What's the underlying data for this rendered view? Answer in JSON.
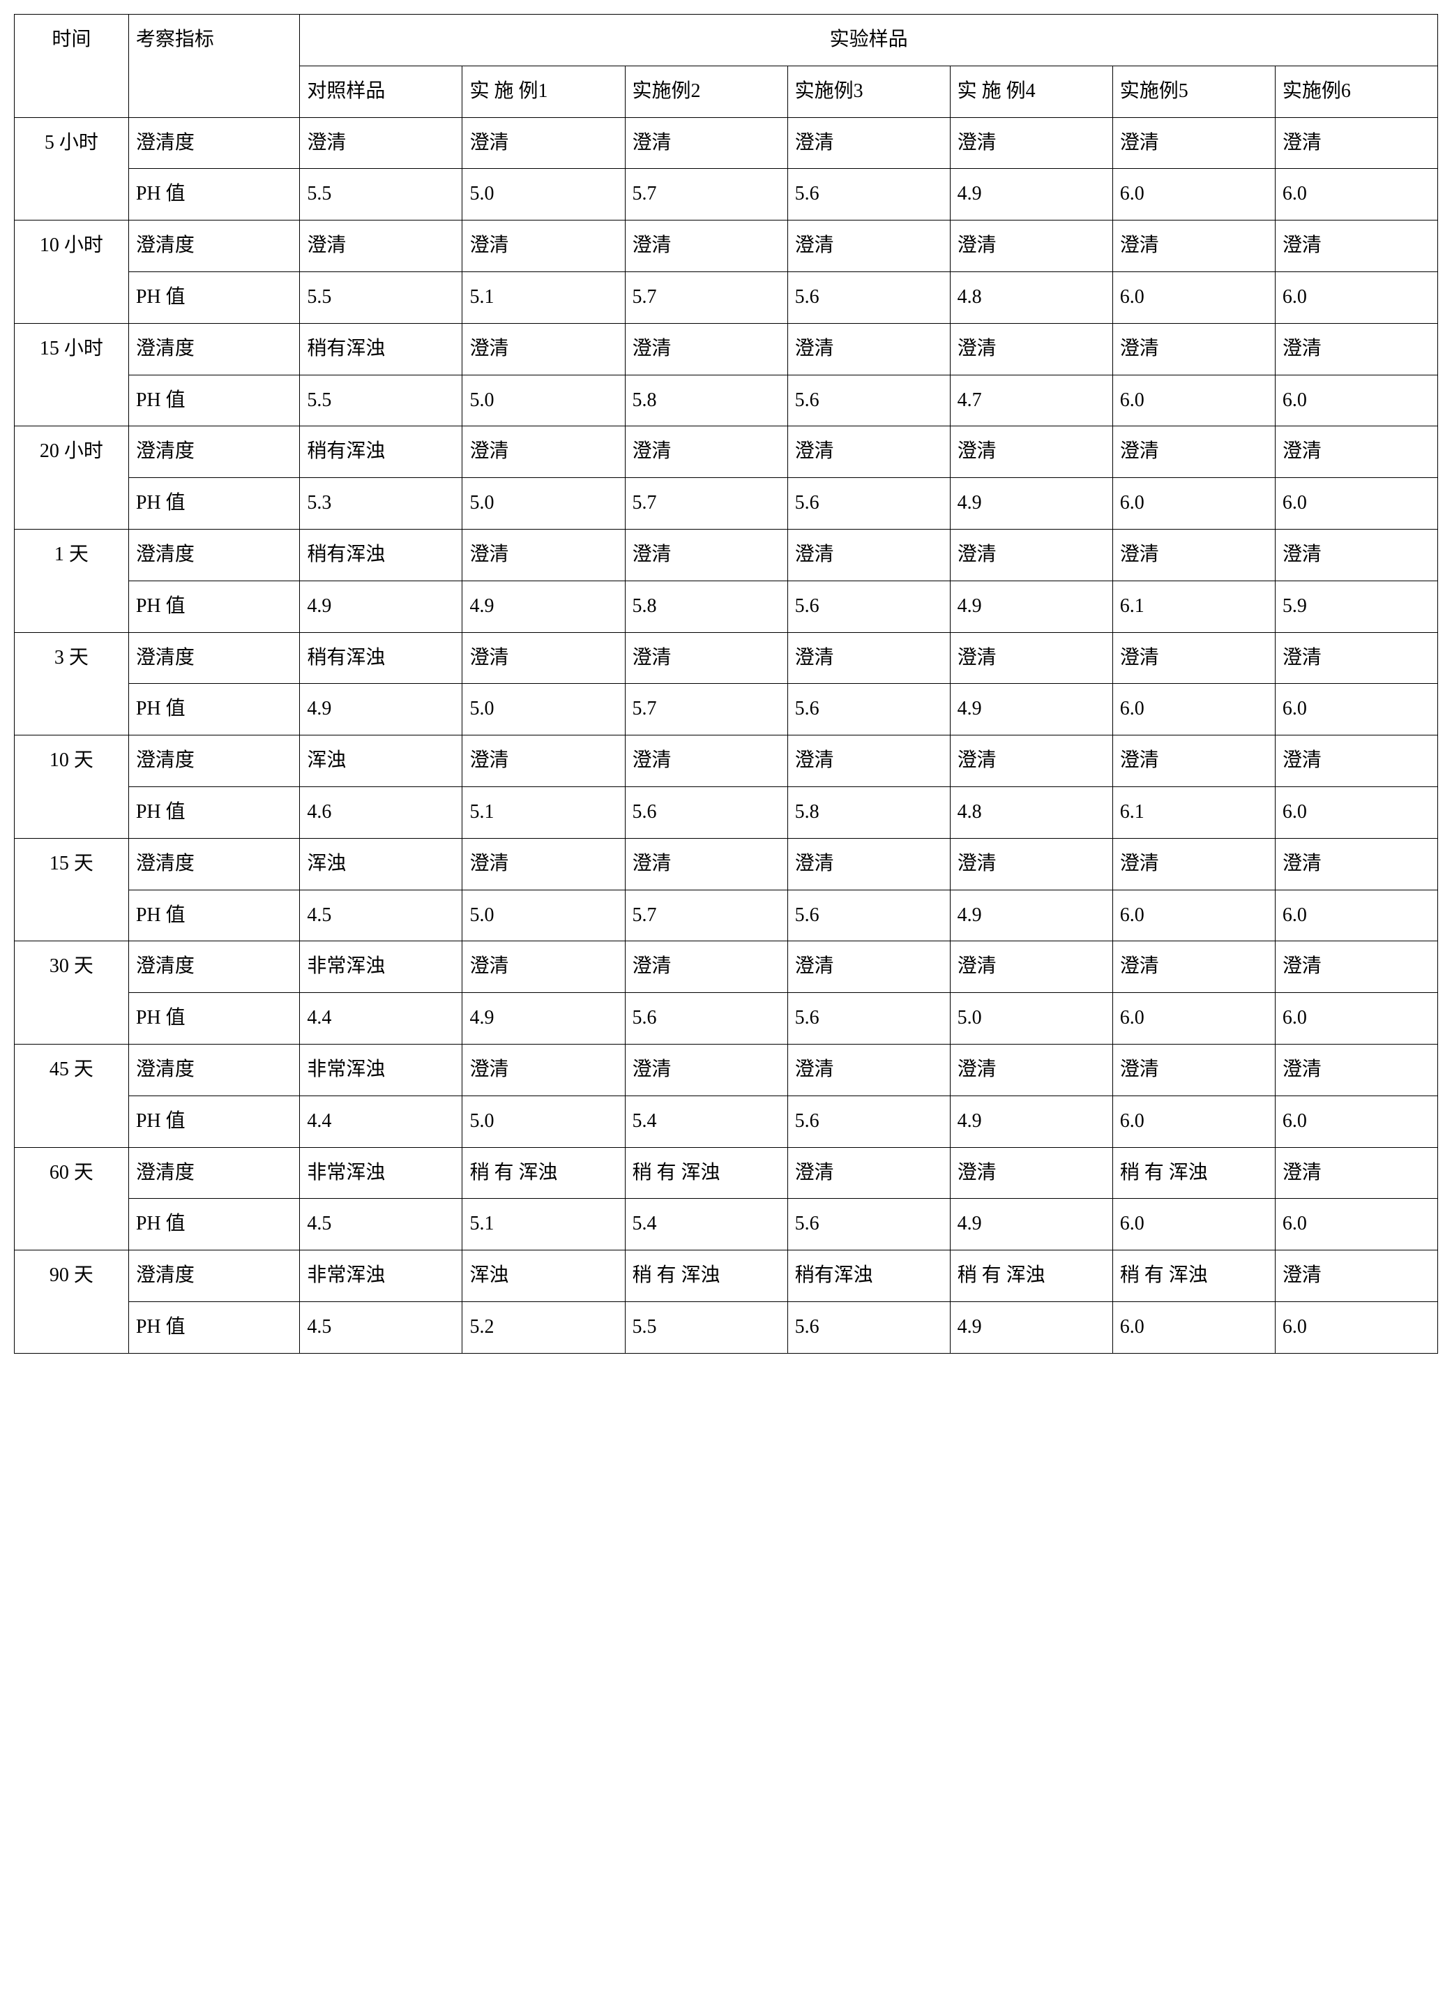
{
  "table": {
    "header": {
      "time": "时间",
      "metric": "考察指标",
      "samples_group": "实验样品",
      "samples": [
        "对照样品",
        "实 施 例1",
        "实施例2",
        "实施例3",
        "实 施 例4",
        "实施例5",
        "实施例6"
      ]
    },
    "rows": [
      {
        "time": "5 小时",
        "metric": "澄清度",
        "vals": [
          "澄清",
          "澄清",
          "澄清",
          "澄清",
          "澄清",
          "澄清",
          "澄清"
        ]
      },
      {
        "time": "",
        "metric": "PH 值",
        "vals": [
          "5.5",
          "5.0",
          "5.7",
          "5.6",
          "4.9",
          "6.0",
          "6.0"
        ]
      },
      {
        "time": "10 小时",
        "metric": "澄清度",
        "vals": [
          "澄清",
          "澄清",
          "澄清",
          "澄清",
          "澄清",
          "澄清",
          "澄清"
        ]
      },
      {
        "time": "",
        "metric": "PH 值",
        "vals": [
          "5.5",
          "5.1",
          "5.7",
          "5.6",
          "4.8",
          "6.0",
          "6.0"
        ]
      },
      {
        "time": "15 小时",
        "metric": "澄清度",
        "vals": [
          "稍有浑浊",
          "澄清",
          "澄清",
          "澄清",
          "澄清",
          "澄清",
          "澄清"
        ]
      },
      {
        "time": "",
        "metric": "PH 值",
        "vals": [
          "5.5",
          "5.0",
          "5.8",
          "5.6",
          "4.7",
          "6.0",
          "6.0"
        ]
      },
      {
        "time": "20 小时",
        "metric": "澄清度",
        "vals": [
          "稍有浑浊",
          "澄清",
          "澄清",
          "澄清",
          "澄清",
          "澄清",
          "澄清"
        ]
      },
      {
        "time": "",
        "metric": "PH 值",
        "vals": [
          "5.3",
          "5.0",
          "5.7",
          "5.6",
          "4.9",
          "6.0",
          "6.0"
        ]
      },
      {
        "time": "1 天",
        "metric": "澄清度",
        "vals": [
          "稍有浑浊",
          "澄清",
          "澄清",
          "澄清",
          "澄清",
          "澄清",
          "澄清"
        ]
      },
      {
        "time": "",
        "metric": "PH 值",
        "vals": [
          "4.9",
          "4.9",
          "5.8",
          "5.6",
          "4.9",
          "6.1",
          "5.9"
        ]
      },
      {
        "time": "3 天",
        "metric": "澄清度",
        "vals": [
          "稍有浑浊",
          "澄清",
          "澄清",
          "澄清",
          "澄清",
          "澄清",
          "澄清"
        ]
      },
      {
        "time": "",
        "metric": "PH 值",
        "vals": [
          "4.9",
          "5.0",
          "5.7",
          "5.6",
          "4.9",
          "6.0",
          "6.0"
        ]
      },
      {
        "time": "10 天",
        "metric": "澄清度",
        "vals": [
          "浑浊",
          "澄清",
          "澄清",
          "澄清",
          "澄清",
          "澄清",
          "澄清"
        ]
      },
      {
        "time": "",
        "metric": "PH 值",
        "vals": [
          "4.6",
          "5.1",
          "5.6",
          "5.8",
          "4.8",
          "6.1",
          "6.0"
        ]
      },
      {
        "time": "15 天",
        "metric": "澄清度",
        "vals": [
          "浑浊",
          "澄清",
          "澄清",
          "澄清",
          "澄清",
          "澄清",
          "澄清"
        ]
      },
      {
        "time": "",
        "metric": "PH 值",
        "vals": [
          "4.5",
          "5.0",
          "5.7",
          "5.6",
          "4.9",
          "6.0",
          "6.0"
        ]
      },
      {
        "time": "30 天",
        "metric": "澄清度",
        "vals": [
          "非常浑浊",
          "澄清",
          "澄清",
          "澄清",
          "澄清",
          "澄清",
          "澄清"
        ]
      },
      {
        "time": "",
        "metric": "PH 值",
        "vals": [
          "4.4",
          "4.9",
          "5.6",
          "5.6",
          "5.0",
          "6.0",
          "6.0"
        ]
      },
      {
        "time": "45 天",
        "metric": "澄清度",
        "vals": [
          "非常浑浊",
          "澄清",
          "澄清",
          "澄清",
          "澄清",
          "澄清",
          "澄清"
        ]
      },
      {
        "time": "",
        "metric": "PH 值",
        "vals": [
          "4.4",
          "5.0",
          "5.4",
          "5.6",
          "4.9",
          "6.0",
          "6.0"
        ]
      },
      {
        "time": "60 天",
        "metric": "澄清度",
        "vals": [
          "非常浑浊",
          "稍 有 浑浊",
          "稍 有 浑浊",
          "澄清",
          "澄清",
          "稍 有 浑浊",
          "澄清"
        ]
      },
      {
        "time": "",
        "metric": "PH 值",
        "vals": [
          "4.5",
          "5.1",
          "5.4",
          "5.6",
          "4.9",
          "6.0",
          "6.0"
        ]
      },
      {
        "time": "90 天",
        "metric": "澄清度",
        "vals": [
          "非常浑浊",
          "浑浊",
          "稍 有 浑浊",
          "稍有浑浊",
          "稍 有 浑浊",
          "稍 有 浑浊",
          "澄清"
        ]
      },
      {
        "time": "",
        "metric": "PH 值",
        "vals": [
          "4.5",
          "5.2",
          "5.5",
          "5.6",
          "4.9",
          "6.0",
          "6.0"
        ]
      }
    ]
  }
}
